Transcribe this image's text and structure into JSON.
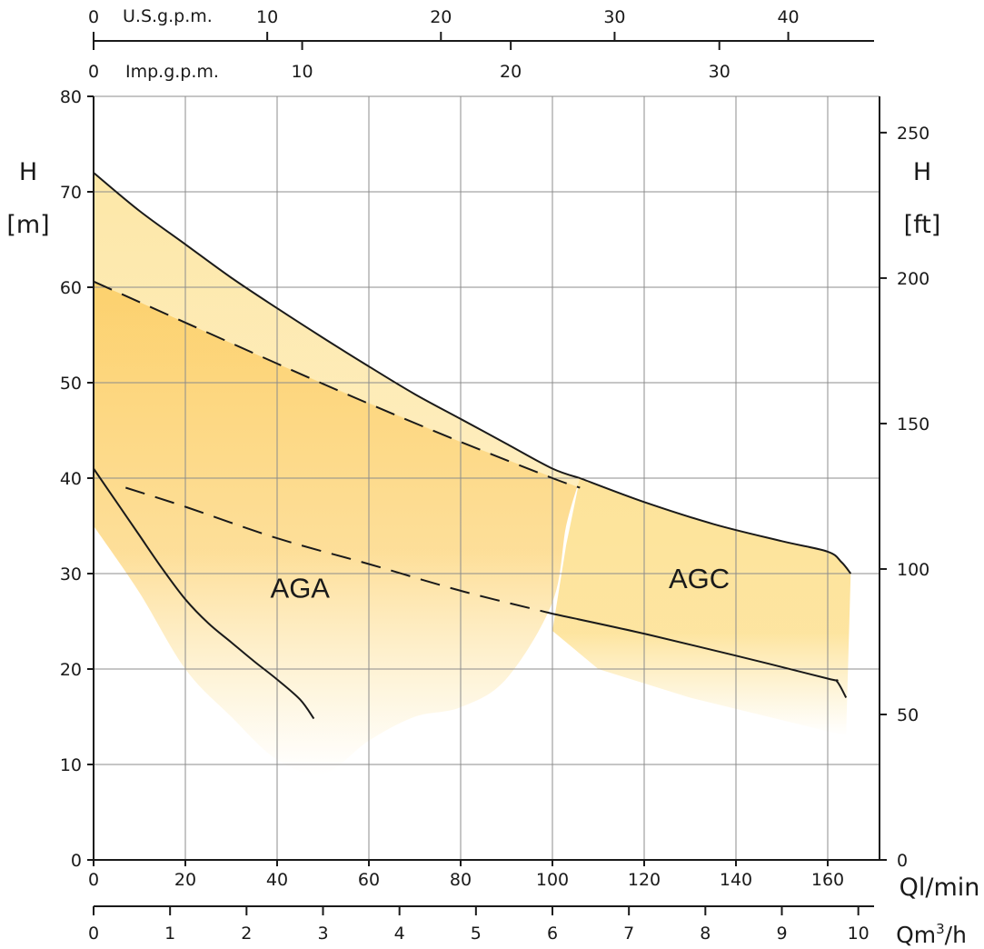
{
  "chart_data": {
    "type": "area",
    "title": "",
    "xlabel": "Ql/min",
    "ylabel": "H [m]",
    "xlim": [
      0,
      165
    ],
    "ylim": [
      0,
      80
    ],
    "grid": true,
    "colors": {
      "band_light": "#fde6a3",
      "band_mid": "#fdd987",
      "band_deep": "#fcc954",
      "curve": "#1a1a1a",
      "grid": "#8c8c8c"
    },
    "axes": {
      "left": {
        "label_top": "H",
        "label_unit": "[m]",
        "ticks": [
          0,
          10,
          20,
          30,
          40,
          50,
          60,
          70,
          80
        ]
      },
      "right": {
        "label_top": "H",
        "label_unit": "[ft]",
        "ticks": [
          0,
          50,
          100,
          150,
          200,
          250
        ]
      },
      "bottom_lmin": {
        "label": "Ql/min",
        "ticks": [
          0,
          20,
          40,
          60,
          80,
          100,
          120,
          140,
          160
        ]
      },
      "bottom_m3h": {
        "label_main": "Qm",
        "label_sup": "3",
        "label_tail": "/h",
        "ticks": [
          0,
          1,
          2,
          3,
          4,
          5,
          6,
          7,
          8,
          9,
          10
        ]
      },
      "top_usgpm": {
        "label": "U.S.g.p.m.",
        "ticks": [
          0,
          10,
          20,
          30,
          40
        ]
      },
      "top_impgpm": {
        "label": "Imp.g.p.m.",
        "ticks": [
          0,
          10,
          20,
          30
        ]
      }
    },
    "regions": [
      {
        "name": "AGA",
        "label_at": [
          45,
          27.5
        ]
      },
      {
        "name": "AGC",
        "label_at": [
          132,
          28.5
        ]
      }
    ],
    "series": [
      {
        "id": "aga-upper",
        "style": "solid",
        "points": [
          [
            0,
            72
          ],
          [
            10,
            68
          ],
          [
            20,
            64.5
          ],
          [
            30,
            61
          ],
          [
            40,
            57.8
          ],
          [
            50,
            54.7
          ],
          [
            60,
            51.7
          ],
          [
            70,
            48.8
          ],
          [
            80,
            46.2
          ],
          [
            90,
            43.6
          ],
          [
            100,
            41
          ],
          [
            106,
            40
          ]
        ]
      },
      {
        "id": "aga-upper-dashed",
        "style": "dashed",
        "points": [
          [
            0,
            60.6
          ],
          [
            20,
            56.3
          ],
          [
            40,
            52
          ],
          [
            60,
            47.8
          ],
          [
            80,
            43.8
          ],
          [
            100,
            40
          ],
          [
            106,
            39
          ]
        ]
      },
      {
        "id": "aga-lower",
        "style": "solid",
        "points": [
          [
            0,
            41
          ],
          [
            5,
            37.5
          ],
          [
            10,
            34
          ],
          [
            15,
            30.5
          ],
          [
            20,
            27.3
          ],
          [
            25,
            24.8
          ],
          [
            30,
            22.8
          ],
          [
            35,
            20.8
          ],
          [
            40,
            18.9
          ],
          [
            45,
            16.8
          ],
          [
            48,
            14.8
          ]
        ]
      },
      {
        "id": "agc-lower-dashed",
        "style": "dashed",
        "points": [
          [
            7,
            39
          ],
          [
            20,
            37
          ],
          [
            40,
            33.7
          ],
          [
            60,
            31
          ],
          [
            80,
            28.2
          ],
          [
            100,
            25.8
          ]
        ]
      },
      {
        "id": "agc-upper",
        "style": "solid",
        "points": [
          [
            106,
            40
          ],
          [
            120,
            37.5
          ],
          [
            135,
            35.2
          ],
          [
            150,
            33.4
          ],
          [
            160,
            32.3
          ],
          [
            163,
            31.2
          ],
          [
            165,
            30
          ]
        ]
      },
      {
        "id": "agc-lower",
        "style": "solid",
        "points": [
          [
            100,
            25.8
          ],
          [
            120,
            23.7
          ],
          [
            140,
            21.4
          ],
          [
            160,
            19
          ],
          [
            162,
            18.7
          ],
          [
            164,
            17
          ]
        ]
      }
    ]
  }
}
